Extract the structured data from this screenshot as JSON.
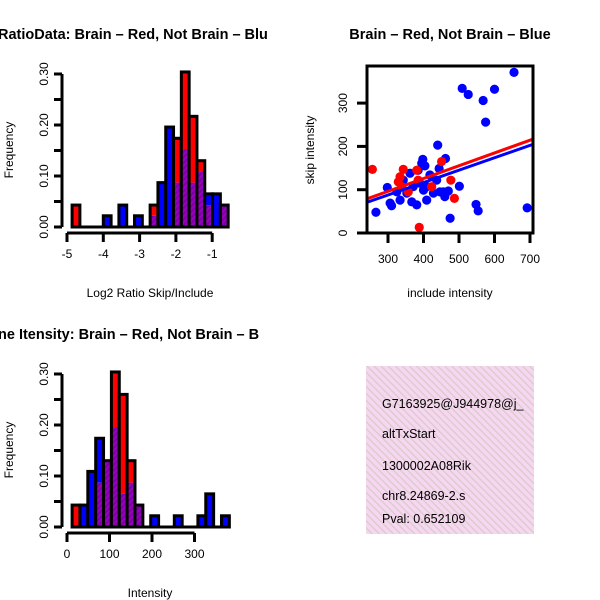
{
  "chart_data": [
    {
      "type": "bar",
      "subtype": "overlaid-histogram",
      "title": "RatioData: Brain – Red, Not Brain – Blu",
      "xlabel": "Log2 Ratio Skip/Include",
      "ylabel": "Frequency",
      "xticks": [
        "-5",
        "-4",
        "-3",
        "-2",
        "-1"
      ],
      "xtick_values": [
        -5,
        -4,
        -3,
        -2,
        -1
      ],
      "yticks": [
        "0.00",
        "0.10",
        "0.20",
        "0.30"
      ],
      "ytick_values": [
        0,
        0.1,
        0.2,
        0.3
      ],
      "yminor_values": [
        0.05,
        0.15,
        0.25
      ],
      "ylim": [
        0,
        0.3
      ],
      "bin_start": -4.86,
      "bin_width": 0.215,
      "series": [
        {
          "name": "Brain",
          "color": "#ff0000",
          "values": [
            0.043,
            0,
            0,
            0,
            0,
            0,
            0,
            0,
            0,
            0,
            0.043,
            0,
            0,
            0.174,
            0.304,
            0.217,
            0.13,
            0.043,
            0,
            0.043
          ]
        },
        {
          "name": "Not Brain",
          "color": "#0000ff",
          "values": [
            0,
            0,
            0,
            0,
            0.022,
            0,
            0.043,
            0,
            0.022,
            0,
            0.022,
            0.087,
            0.196,
            0.087,
            0.152,
            0.087,
            0.109,
            0.065,
            0.065,
            0.043
          ]
        }
      ]
    },
    {
      "type": "scatter",
      "title": "Brain – Red, Not Brain – Blue",
      "xlabel": "include intensity",
      "ylabel": "skip intensity",
      "xticks": [
        "300",
        "400",
        "500",
        "600",
        "700"
      ],
      "xtick_values": [
        300,
        400,
        500,
        600,
        700
      ],
      "yticks": [
        "0",
        "100",
        "200",
        "300"
      ],
      "ytick_values": [
        0,
        100,
        200,
        300
      ],
      "xlim": [
        241,
        710
      ],
      "ylim": [
        0,
        385
      ],
      "series": [
        {
          "name": "Not Brain",
          "color": "#0000ff",
          "points": [
            [
              655,
              371
            ],
            [
              509,
              334
            ],
            [
              526,
              320
            ],
            [
              600,
              332
            ],
            [
              568,
              306
            ],
            [
              575,
              256
            ],
            [
              440,
              203
            ],
            [
              462,
              172
            ],
            [
              398,
              170
            ],
            [
              404,
              155
            ],
            [
              444,
              149
            ],
            [
              501,
              108
            ],
            [
              298,
              105
            ],
            [
              266,
              48
            ],
            [
              475,
              34
            ],
            [
              548,
              66
            ],
            [
              554,
              51
            ],
            [
              692,
              58
            ],
            [
              470,
              97
            ],
            [
              456,
              95
            ],
            [
              460,
              84
            ],
            [
              428,
              92
            ],
            [
              409,
              76
            ],
            [
              381,
              65
            ],
            [
              367,
              72
            ],
            [
              306,
              69
            ],
            [
              310,
              63
            ],
            [
              334,
              76
            ],
            [
              353,
              92
            ],
            [
              371,
              107
            ],
            [
              390,
              115
            ],
            [
              409,
              107
            ],
            [
              400,
              99
            ],
            [
              362,
              138
            ],
            [
              385,
              145
            ],
            [
              418,
              134
            ],
            [
              437,
              122
            ],
            [
              343,
              122
            ],
            [
              325,
              95
            ],
            [
              395,
              161
            ],
            [
              446,
              95
            ]
          ],
          "fit": {
            "x": [
              238,
              709
            ],
            "y": [
              70,
              205
            ]
          }
        },
        {
          "name": "Brain",
          "color": "#ff0000",
          "points": [
            [
              256,
              147
            ],
            [
              343,
              147
            ],
            [
              334,
              130
            ],
            [
              329,
              118
            ],
            [
              381,
              145
            ],
            [
              388,
              13
            ],
            [
              477,
              122
            ],
            [
              487,
              80
            ],
            [
              451,
              165
            ],
            [
              357,
              95
            ],
            [
              423,
              107
            ],
            [
              385,
              122
            ],
            [
              339,
              107
            ]
          ],
          "fit": {
            "x": [
              238,
              709
            ],
            "y": [
              78,
              217
            ]
          }
        }
      ]
    },
    {
      "type": "bar",
      "subtype": "overlaid-histogram",
      "title": "ne Itensity: Brain – Red, Not Brain – B",
      "xlabel": "Intensity",
      "ylabel": "Frequency",
      "xticks": [
        "0",
        "100",
        "200",
        "300"
      ],
      "xtick_values": [
        0,
        100,
        200,
        300
      ],
      "yticks": [
        "0.00",
        "0.10",
        "0.20",
        "0.30"
      ],
      "ytick_values": [
        0,
        0.1,
        0.2,
        0.3
      ],
      "yminor_values": [
        0.05,
        0.15,
        0.25
      ],
      "ylim": [
        0,
        0.3
      ],
      "bin_start": 12,
      "bin_width": 18.5,
      "series": [
        {
          "name": "Brain",
          "color": "#ff0000",
          "values": [
            0.043,
            0,
            0,
            0.087,
            0.13,
            0.304,
            0.26,
            0.13,
            0.043,
            0,
            0,
            0,
            0,
            0,
            0,
            0,
            0,
            0,
            0,
            0
          ]
        },
        {
          "name": "Not Brain",
          "color": "#0000ff",
          "values": [
            0,
            0.043,
            0.109,
            0.174,
            0.13,
            0.196,
            0.065,
            0.087,
            0.043,
            0,
            0.022,
            0,
            0,
            0.022,
            0,
            0,
            0.022,
            0.065,
            0,
            0.022
          ]
        }
      ]
    }
  ],
  "info_box": {
    "lines": [
      "G7163925@J944978@j_",
      "altTxStart",
      "1300002A08Rik",
      "chr8.24869-2.s"
    ],
    "pval": "Pval: 0.652109",
    "pval_color": "#aa0000"
  }
}
